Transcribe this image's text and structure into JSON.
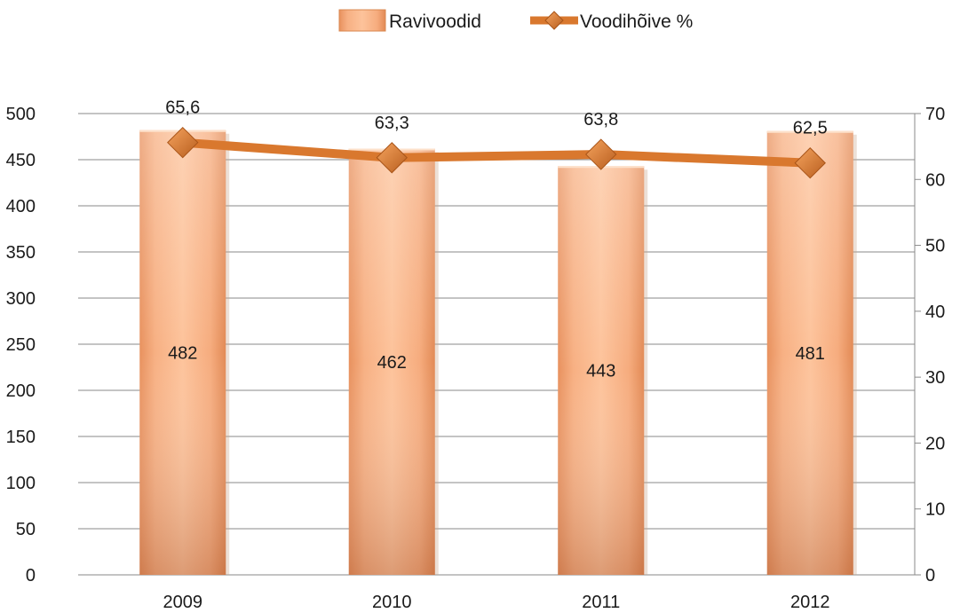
{
  "chart_data": {
    "type": "bar",
    "categories": [
      "2009",
      "2010",
      "2011",
      "2012"
    ],
    "series": [
      {
        "name": "Ravivoodid",
        "type": "bar",
        "axis": "left",
        "values": [
          482,
          462,
          443,
          481
        ],
        "labels": [
          "482",
          "462",
          "443",
          "481"
        ],
        "color": "#F5A070"
      },
      {
        "name": "Voodihõive %",
        "type": "line",
        "axis": "right",
        "values": [
          65.6,
          63.3,
          63.8,
          62.5
        ],
        "labels": [
          "65,6",
          "63,3",
          "63,8",
          "62,5"
        ],
        "color": "#D9782E",
        "marker": "diamond"
      }
    ],
    "y_left": {
      "min": 0,
      "max": 500,
      "step": 50,
      "ticks": [
        "0",
        "50",
        "100",
        "150",
        "200",
        "250",
        "300",
        "350",
        "400",
        "450",
        "500"
      ]
    },
    "y_right": {
      "min": 0,
      "max": 70,
      "step": 10,
      "ticks": [
        "0",
        "10",
        "20",
        "30",
        "40",
        "50",
        "60",
        "70"
      ]
    },
    "title": "",
    "xlabel": "",
    "ylabel": "",
    "grid": true,
    "legend_position": "top-center"
  }
}
